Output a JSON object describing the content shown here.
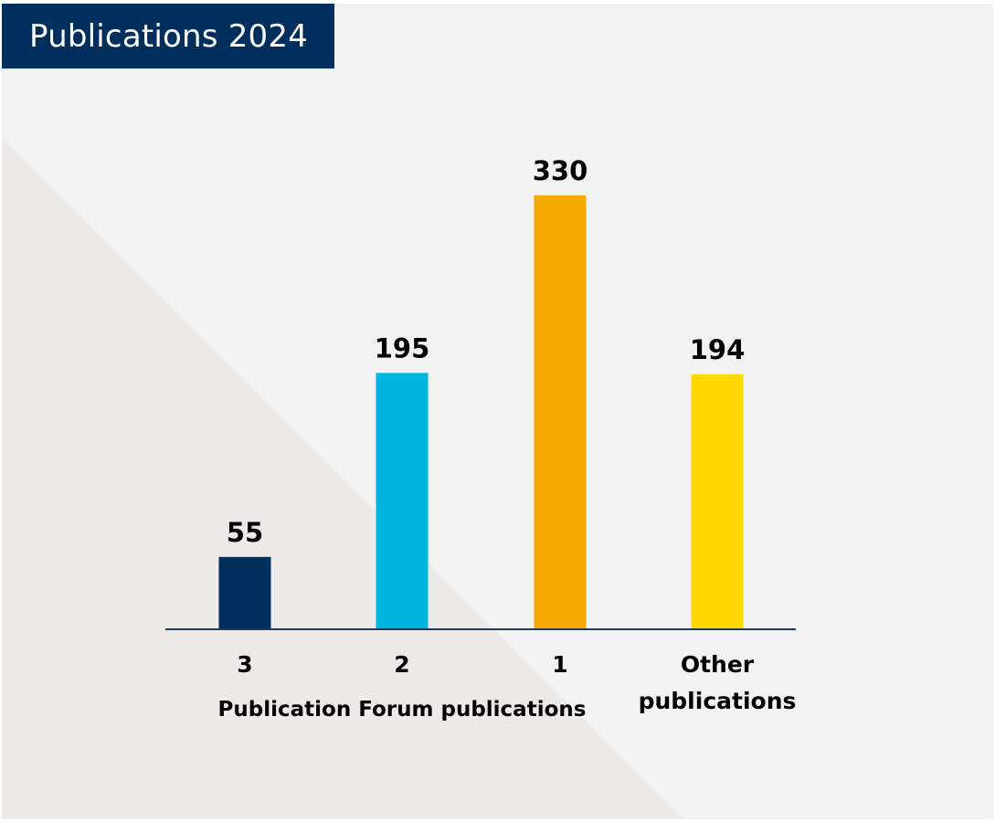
{
  "colors": {
    "title_bg": "#002e5d",
    "title_fg": "#ffffff",
    "panel_bg": "#f2f2f2",
    "triangle": "#ede9e8",
    "axis": "#1f3a5a"
  },
  "chart_data": {
    "type": "bar",
    "title": "Publications 2024",
    "categories": [
      "3",
      "2",
      "1",
      "Other\npublications"
    ],
    "values": [
      55,
      195,
      330,
      194
    ],
    "bar_colors": [
      "#002e5d",
      "#00b5e2",
      "#f5a800",
      "#ffd800"
    ],
    "xlabel": "Publication Forum publications",
    "ylabel": "",
    "ylim": [
      0,
      330
    ],
    "grid": false,
    "legend": "none"
  }
}
